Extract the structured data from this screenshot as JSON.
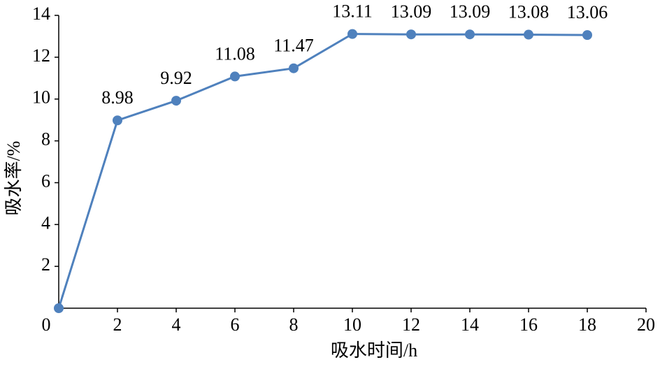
{
  "chart_data": {
    "type": "line",
    "x_label": "吸水时间/h",
    "y_label": "吸水率/%",
    "x": [
      0,
      2,
      4,
      6,
      8,
      10,
      12,
      14,
      16,
      18
    ],
    "series": [
      {
        "color": "#4f81bd",
        "values": [
          0,
          8.98,
          9.92,
          11.08,
          11.47,
          13.11,
          13.09,
          13.09,
          13.08,
          13.06
        ],
        "value_labels": [
          null,
          "8.98",
          "9.92",
          "11.08",
          "11.47",
          "13.11",
          "13.09",
          "13.09",
          "13.08",
          "13.06"
        ]
      }
    ],
    "xlim": [
      0,
      20
    ],
    "xticks": [
      0,
      2,
      4,
      6,
      8,
      10,
      12,
      14,
      16,
      18,
      20
    ],
    "ylim": [
      0,
      14
    ],
    "yticks": [
      2,
      4,
      6,
      8,
      10,
      12,
      14
    ],
    "grid": false
  }
}
